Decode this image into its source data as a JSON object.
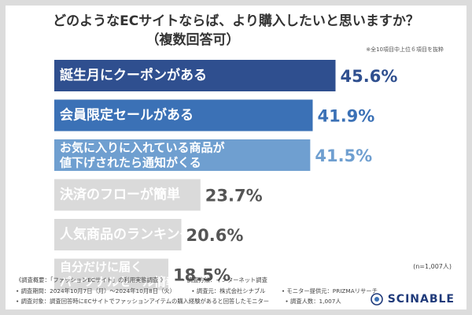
{
  "title_line1": "どのようなECサイトならば、より購入したいと思いますか？",
  "title_line2": "（複数回答可）",
  "note": "※全10項目中上位６項目を抜粋",
  "sample_size": "(n=1,007人)",
  "chart_data": {
    "type": "bar",
    "orientation": "horizontal",
    "title": "どのようなECサイトならば、より購入したいと思いますか？（複数回答可）",
    "unit": "%",
    "categories": [
      [
        "誕生月にクーポンがある"
      ],
      [
        "会員限定セールがある"
      ],
      [
        "お気に入りに入れている商品が",
        "値下げされたら通知がくる"
      ],
      [
        "決済のフローが簡単"
      ],
      [
        "人気商品のランキングがわかる"
      ],
      [
        "自分だけに届く",
        "パーソナルセール情報がある"
      ]
    ],
    "values": [
      45.6,
      41.9,
      41.5,
      23.7,
      20.6,
      18.5
    ],
    "value_labels": [
      "45.6%",
      "41.9%",
      "41.5%",
      "23.7%",
      "20.6%",
      "18.5%"
    ],
    "bar_colors": [
      "#2f4f8f",
      "#3b71b6",
      "#6f9fd0",
      "#dadada",
      "#dadada",
      "#dadada"
    ],
    "label_colors": [
      "#ffffff",
      "#ffffff",
      "#ffffff",
      "#333333",
      "#333333",
      "#333333"
    ],
    "value_colors": [
      "#2f4f8f",
      "#3b71b6",
      "#6f9fd0",
      "#555555",
      "#555555",
      "#555555"
    ],
    "xlim": [
      0,
      50
    ]
  },
  "footer": {
    "line1_a": "《調査概要：「ファッションECサイト」の利用実態調査 》",
    "line1_b": "• 調査方法：インターネット調査",
    "line2_a": "• 調査期間：2024年10月7日（月）〜2024年10月8日（火）",
    "line2_b": "• 調査元：株式会社シナブル",
    "line2_c": "• モニター提供元：PRIZMAリサーチ",
    "line3_a": "• 調査対象：調査回答時にECサイトでファッションアイテムの購入経験があると回答したモニター",
    "line3_b": "• 調査人数：1,007人"
  },
  "brand": {
    "name": "SCINABLE",
    "color": "#1f3a7a"
  }
}
